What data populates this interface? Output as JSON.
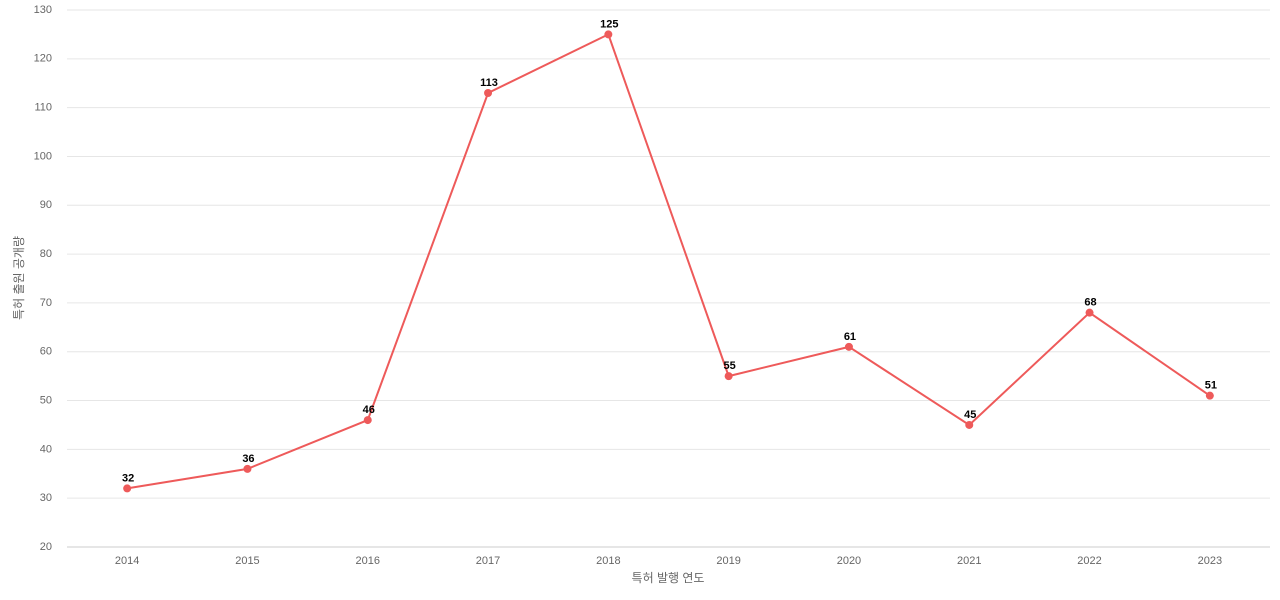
{
  "chart_data": {
    "type": "line",
    "x_label": "특허 발행 연도",
    "y_label": "특허 출원 공개량",
    "categories": [
      "2014",
      "2015",
      "2016",
      "2017",
      "2018",
      "2019",
      "2020",
      "2021",
      "2022",
      "2023"
    ],
    "values": [
      32,
      36,
      46,
      113,
      125,
      55,
      61,
      45,
      68,
      51
    ],
    "color": "#ee5a5a",
    "ylim": [
      20,
      130
    ],
    "yticks": [
      20,
      30,
      40,
      50,
      60,
      70,
      80,
      90,
      100,
      110,
      120,
      130
    ],
    "grid": true
  }
}
